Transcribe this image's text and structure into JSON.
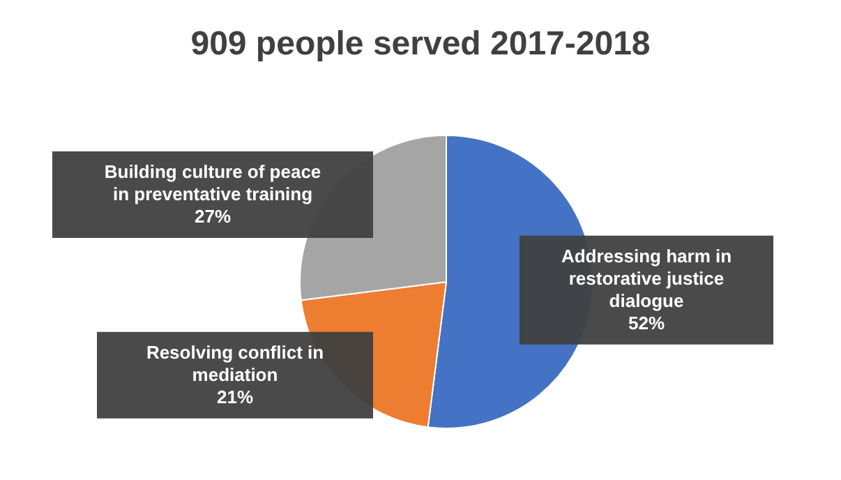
{
  "chart_data": {
    "type": "pie",
    "title": "909 people served 2017-2018",
    "categories": [
      "Addressing harm in restorative justice dialogue",
      "Resolving conflict in mediation",
      "Building culture of peace in preventative training"
    ],
    "values": [
      52,
      21,
      27
    ],
    "colors": [
      "#4472c4",
      "#ed7d31",
      "#a5a5a5"
    ],
    "value_labels": [
      "52%",
      "21%",
      "27%"
    ]
  }
}
